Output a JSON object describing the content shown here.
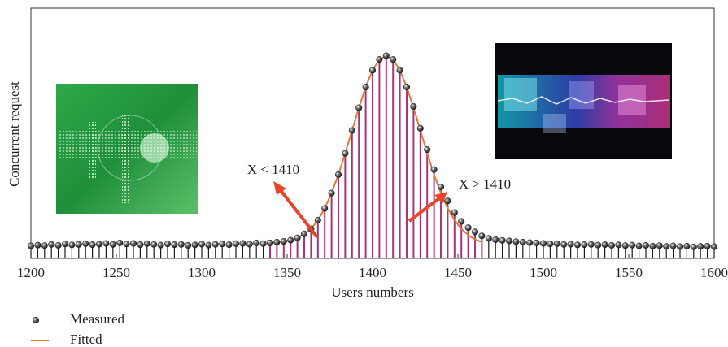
{
  "chart_data": {
    "type": "stem",
    "x_label": "Users numbers",
    "y_label": "Concurrent request",
    "xlim": [
      1200,
      1600
    ],
    "xticks": [
      1200,
      1250,
      1300,
      1350,
      1400,
      1450,
      1500,
      1550,
      1600
    ],
    "ylim": [
      0,
      100
    ],
    "annotations": [
      "X < 1410",
      "X > 1410"
    ],
    "series": [
      {
        "name": "Measured",
        "color": "#1a1a1a",
        "stem_color": "#1a1a1a",
        "x": [
          1200,
          1204,
          1208,
          1212,
          1216,
          1220,
          1224,
          1228,
          1232,
          1236,
          1240,
          1244,
          1248,
          1252,
          1256,
          1260,
          1264,
          1268,
          1272,
          1276,
          1280,
          1284,
          1288,
          1292,
          1296,
          1300,
          1304,
          1308,
          1312,
          1316,
          1320,
          1324,
          1328,
          1332,
          1336,
          1340,
          1344,
          1348,
          1352,
          1356,
          1360,
          1364,
          1368,
          1372,
          1376,
          1380,
          1384,
          1388,
          1392,
          1396,
          1400,
          1404,
          1408,
          1412,
          1416,
          1420,
          1424,
          1428,
          1432,
          1436,
          1440,
          1444,
          1448,
          1452,
          1456,
          1460,
          1464,
          1468,
          1472,
          1476,
          1480,
          1484,
          1488,
          1492,
          1496,
          1500,
          1504,
          1508,
          1512,
          1516,
          1520,
          1524,
          1528,
          1532,
          1536,
          1540,
          1544,
          1548,
          1552,
          1556,
          1560,
          1564,
          1568,
          1572,
          1576,
          1580,
          1584,
          1588,
          1592,
          1596,
          1600
        ],
        "values": [
          5.0,
          5.3,
          5.1,
          5.6,
          5.2,
          5.8,
          5.4,
          5.6,
          5.9,
          5.5,
          5.7,
          6.0,
          5.6,
          6.2,
          5.8,
          6.0,
          5.5,
          5.9,
          5.6,
          5.3,
          5.8,
          5.5,
          5.6,
          5.2,
          5.4,
          5.7,
          5.3,
          5.6,
          5.8,
          5.5,
          5.9,
          6.0,
          5.7,
          6.2,
          5.9,
          6.2,
          6.5,
          6.8,
          7.3,
          8.2,
          9.8,
          11.8,
          15.3,
          20,
          26.1,
          33.5,
          42,
          51.1,
          60.2,
          68.5,
          75.2,
          79.5,
          81,
          79.5,
          75.2,
          68.5,
          60.7,
          52,
          43.5,
          35.5,
          28.6,
          23,
          18.3,
          14.8,
          12.3,
          10.6,
          9,
          8,
          7.5,
          7.2,
          7,
          6.7,
          6.5,
          6.3,
          6.2,
          6,
          5.8,
          5.9,
          5.6,
          5.7,
          5.4,
          5.5,
          5.6,
          5.3,
          5.5,
          5.2,
          5.4,
          5.1,
          5.3,
          5.0,
          5.2,
          4.9,
          5.1,
          4.8,
          5.0,
          4.7,
          4.9,
          4.6,
          4.8,
          4.9,
          4.7
        ]
      },
      {
        "name": "Fitted",
        "color": "#e07b39",
        "fill_color": "#a8347c",
        "x": [
          1340,
          1344,
          1348,
          1352,
          1356,
          1360,
          1364,
          1368,
          1372,
          1376,
          1380,
          1384,
          1388,
          1392,
          1396,
          1400,
          1404,
          1408,
          1412,
          1416,
          1420,
          1424,
          1428,
          1432,
          1436,
          1440,
          1444,
          1448,
          1452,
          1456,
          1460,
          1464
        ],
        "values": [
          6.2,
          6.5,
          6.8,
          7.3,
          8.2,
          9.8,
          11.8,
          15.3,
          20,
          26.1,
          33.5,
          42,
          51.1,
          60.2,
          68.5,
          75.2,
          79.5,
          81,
          79.5,
          75.2,
          68.5,
          60.2,
          51.1,
          42,
          33.5,
          26.1,
          20,
          15.3,
          11.8,
          9.3,
          7.6,
          6.5
        ]
      }
    ]
  }
}
